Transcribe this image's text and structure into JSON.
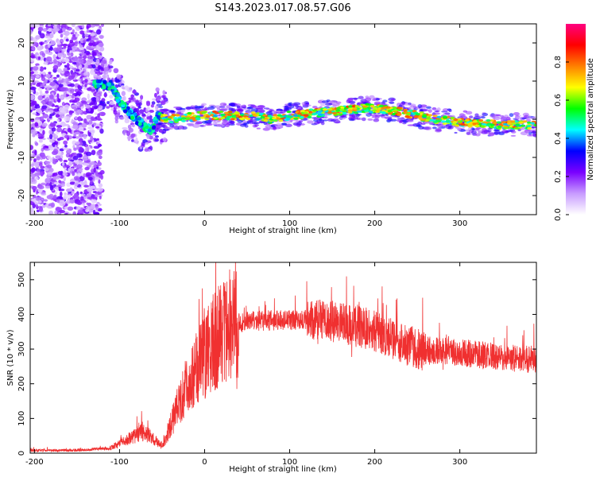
{
  "figure_title": "S143.2023.017.08.57.G06",
  "chart_data": [
    {
      "type": "heatmap",
      "title": "S143.2023.017.08.57.G06",
      "xlabel": "Height of straight line (km)",
      "ylabel": "Frequency (Hz)",
      "xlim": [
        -205,
        390
      ],
      "ylim": [
        -25,
        25
      ],
      "xticks": [
        -200,
        -100,
        0,
        100,
        200,
        300
      ],
      "yticks": [
        -20,
        -10,
        0,
        10,
        20
      ],
      "colorbar": {
        "label": "Normalized spectral amplitude",
        "range": [
          0,
          1
        ],
        "ticks": [
          0.0,
          0.2,
          0.4,
          0.6,
          0.8
        ],
        "colormap": [
          "#ffffff",
          "#c89bff",
          "#7a00ff",
          "#0000ff",
          "#00ffff",
          "#00ff00",
          "#ffff00",
          "#ff8000",
          "#ff0000",
          "#ff0080"
        ]
      },
      "ridge": {
        "x": [
          -125,
          -110,
          -100,
          -90,
          -80,
          -70,
          -62,
          -55,
          -45,
          0,
          50,
          80,
          100,
          150,
          190,
          230,
          270,
          310,
          350,
          390
        ],
        "y": [
          9,
          9,
          5,
          2,
          0,
          -2,
          -3,
          1,
          0,
          1,
          1,
          0,
          1,
          2,
          3,
          2,
          0,
          -1,
          -1.5,
          -1.5
        ]
      }
    },
    {
      "type": "line",
      "xlabel": "Height of straight line (km)",
      "ylabel": "SNR (10 * v/v)",
      "xlim": [
        -205,
        390
      ],
      "ylim": [
        0,
        550
      ],
      "xticks": [
        -200,
        -100,
        0,
        100,
        200,
        300
      ],
      "yticks": [
        0,
        100,
        200,
        300,
        400,
        500
      ],
      "series": [
        {
          "name": "SNR",
          "color": "#f03030",
          "x": [
            -205,
            -150,
            -110,
            -90,
            -75,
            -65,
            -55,
            -50,
            -40,
            -30,
            -20,
            -10,
            0,
            10,
            20,
            30,
            50,
            100,
            150,
            190,
            220,
            250,
            300,
            350,
            390
          ],
          "y": [
            8,
            8,
            15,
            40,
            60,
            50,
            30,
            20,
            80,
            140,
            200,
            240,
            280,
            320,
            350,
            370,
            380,
            385,
            380,
            360,
            330,
            300,
            290,
            275,
            270
          ]
        }
      ]
    }
  ]
}
